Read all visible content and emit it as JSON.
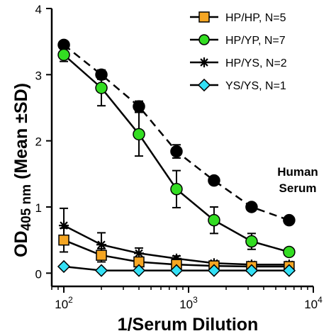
{
  "chart_data": {
    "type": "line",
    "xscale": "log",
    "xlim": [
      80,
      10000
    ],
    "ylim": [
      -0.2,
      4
    ],
    "xlabel": "1/Serum Dilution",
    "ylabel": {
      "main": "OD",
      "sub": "405 nm",
      "rest": " (Mean ±SD)"
    },
    "xticks": [
      {
        "base": "10",
        "exp": "2",
        "value": 100
      },
      {
        "base": "10",
        "exp": "3",
        "value": 1000
      },
      {
        "base": "10",
        "exp": "4",
        "value": 10000
      }
    ],
    "yticks": [
      "0",
      "1",
      "2",
      "3",
      "4"
    ],
    "legend_position": "top-right",
    "series": [
      {
        "name": "Human Serum",
        "marker": "circle-filled",
        "color": "#000000",
        "fill": "#000000",
        "line": "dashed",
        "x": [
          100,
          200,
          400,
          800,
          1600,
          3200,
          6400
        ],
        "y": [
          3.45,
          3.0,
          2.52,
          1.84,
          1.4,
          1.0,
          0.8
        ],
        "err": [
          0.05,
          0.07,
          0.08,
          0.1,
          0.05,
          0.05,
          0.05
        ]
      },
      {
        "name": "HP/HP, N=5",
        "marker": "square",
        "color": "#000000",
        "fill": "#f5a623",
        "line": "solid",
        "x": [
          100,
          200,
          400,
          800,
          1600,
          3200,
          6400
        ],
        "y": [
          0.5,
          0.27,
          0.17,
          0.13,
          0.11,
          0.1,
          0.1
        ],
        "err": [
          0.18,
          0.1,
          0.05,
          0.03,
          0.02,
          0.02,
          0.02
        ]
      },
      {
        "name": "HP/YP, N=7",
        "marker": "circle",
        "color": "#000000",
        "fill": "#33dd22",
        "line": "solid",
        "x": [
          100,
          200,
          400,
          800,
          1600,
          3200,
          6400
        ],
        "y": [
          3.3,
          2.8,
          2.1,
          1.27,
          0.8,
          0.48,
          0.32
        ],
        "err": [
          0.1,
          0.27,
          0.33,
          0.28,
          0.2,
          0.12,
          0.04
        ]
      },
      {
        "name": "HP/YS, N=2",
        "marker": "star",
        "color": "#000000",
        "fill": "#000000",
        "line": "solid",
        "x": [
          100,
          200,
          400,
          800,
          1600,
          3200,
          6400
        ],
        "y": [
          0.72,
          0.43,
          0.3,
          0.22,
          0.15,
          0.13,
          0.13
        ],
        "err": [
          0.26,
          0.18,
          0.08,
          0.04,
          0.03,
          0.02,
          0.02
        ]
      },
      {
        "name": "YS/YS, N=1",
        "marker": "diamond",
        "color": "#000000",
        "fill": "#33e0f5",
        "line": "solid",
        "x": [
          100,
          200,
          400,
          800,
          1600,
          3200,
          6400
        ],
        "y": [
          0.1,
          0.04,
          0.04,
          0.04,
          0.04,
          0.04,
          0.04
        ],
        "err": [
          0,
          0,
          0,
          0,
          0,
          0,
          0
        ]
      }
    ],
    "legend_order": [
      1,
      2,
      3,
      4
    ],
    "annotation": {
      "lines": [
        "Human",
        "Serum"
      ],
      "series": 0
    }
  }
}
